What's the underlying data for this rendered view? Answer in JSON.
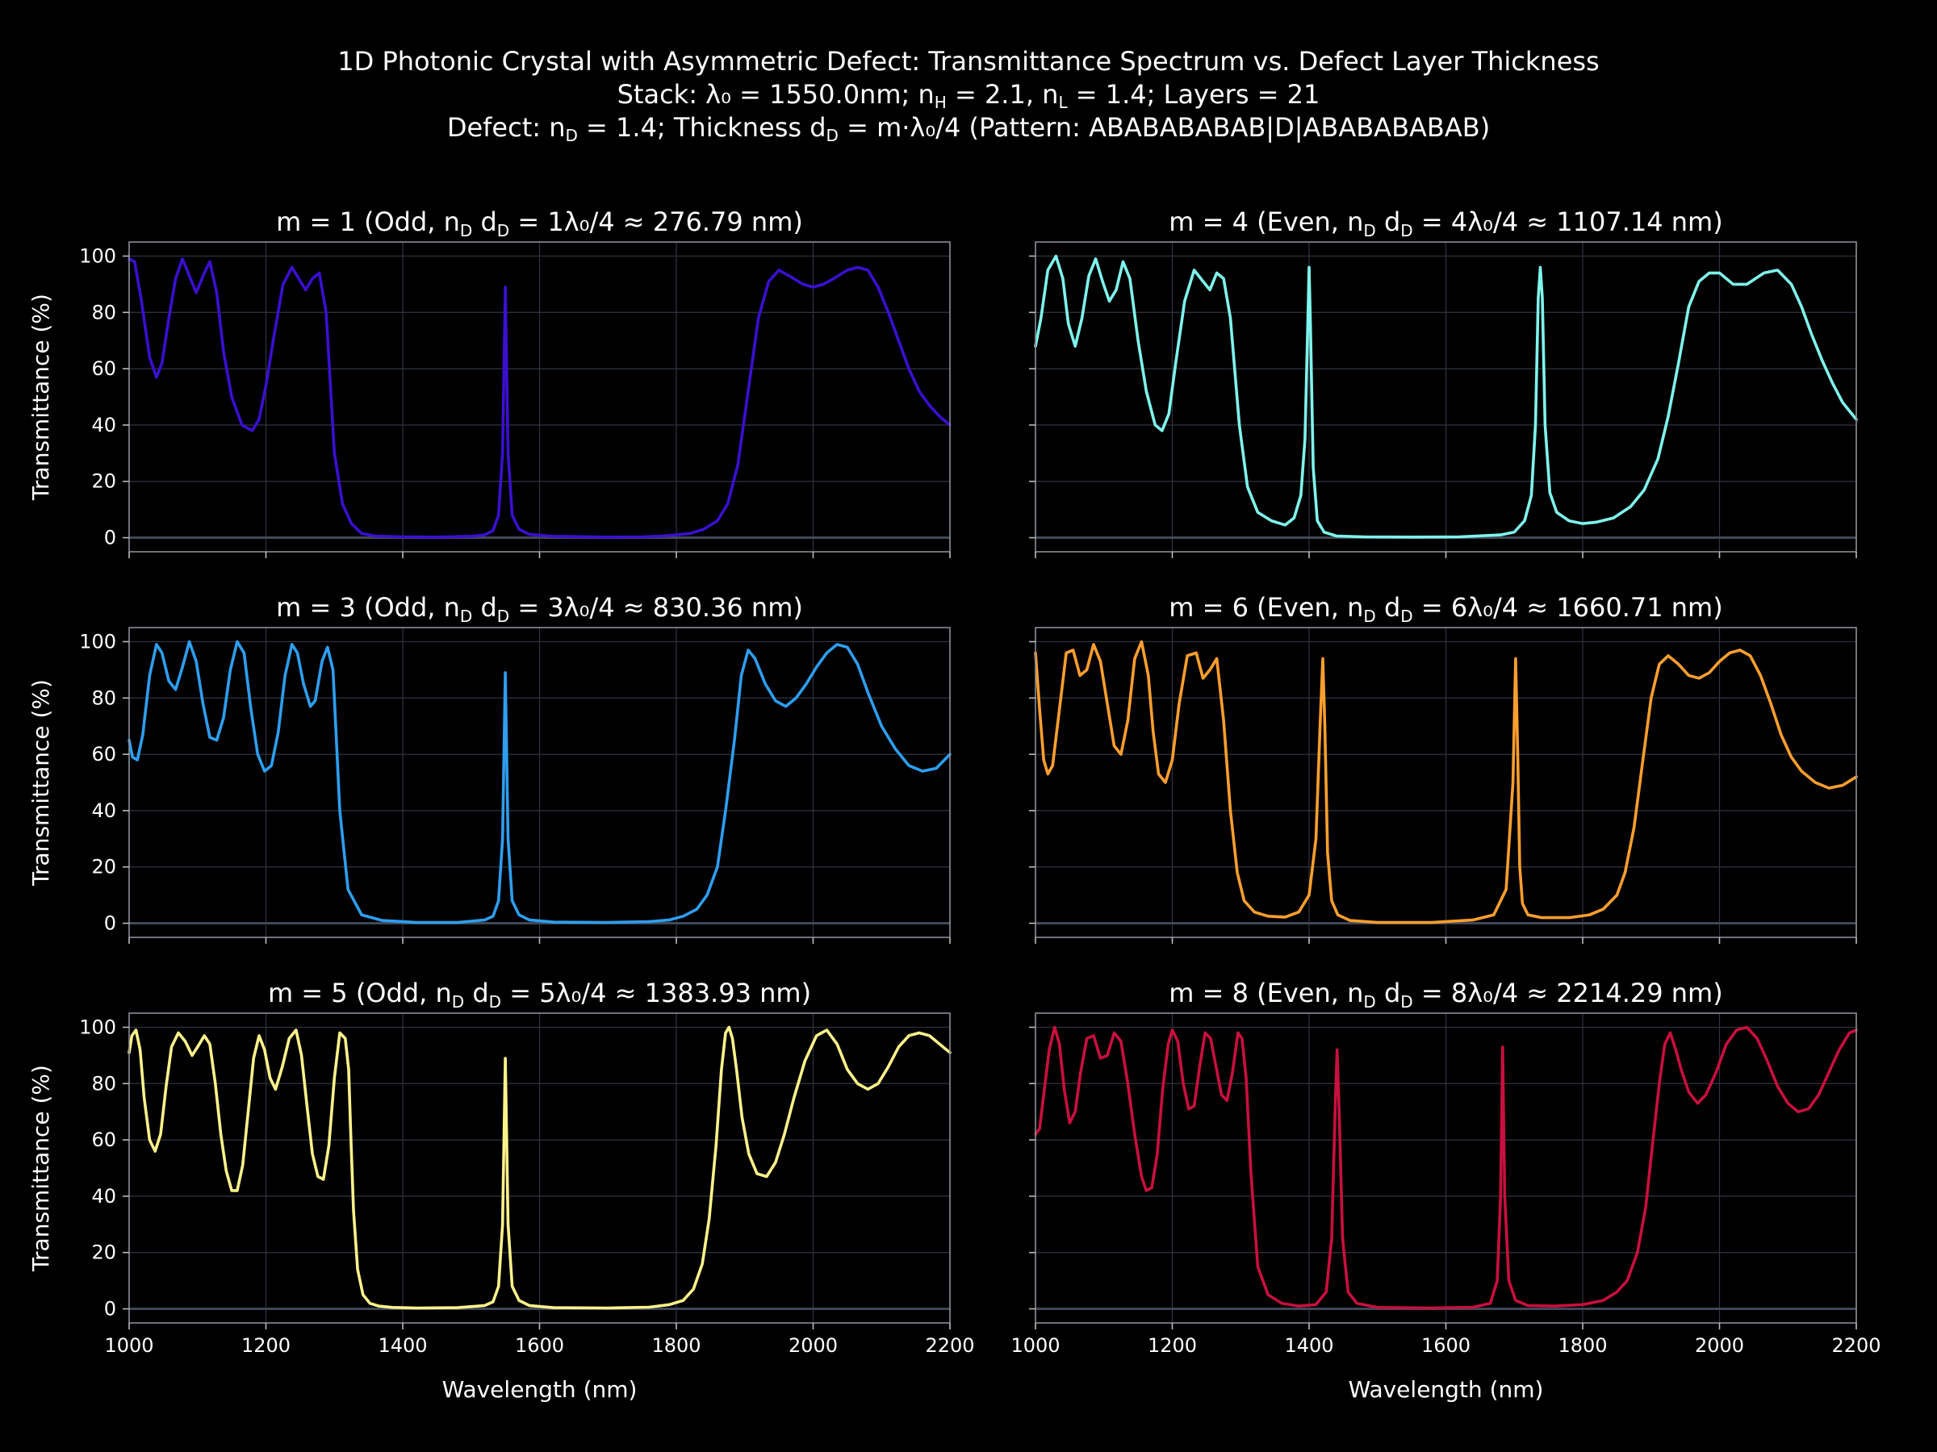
{
  "figure": {
    "title_lines": [
      "1D Photonic Crystal with Asymmetric Defect: Transmittance Spectrum vs. Defect Layer Thickness",
      "Stack: λ₀ = 1550.0nm; n_H = 2.1, n_L = 1.4; Layers = 21",
      "Defect: n_D = 1.4; Thickness d_D = m·λ₀/4 (Pattern: ABABABABAB|D|ABABABABAB)"
    ],
    "background": "#000000",
    "grid_color": "#2f3540",
    "baseline_color": "#3f4858"
  },
  "chart_data": [
    {
      "type": "line",
      "title": "m = 1 (Odd, n_D d_D = 1λ₀/4 ≈ 276.79 nm)",
      "xlabel": "",
      "ylabel": "Transmittance (%)",
      "xlim": [
        1000,
        2200
      ],
      "ylim": [
        -5,
        105
      ],
      "xticks": [
        1000,
        1200,
        1400,
        1600,
        1800,
        2000,
        2200
      ],
      "yticks": [
        0,
        20,
        40,
        60,
        80,
        100
      ],
      "show_xtick_labels": false,
      "show_ytick_labels": true,
      "grid": true,
      "color": "#3a10d0",
      "x": [
        1000,
        1008,
        1018,
        1030,
        1040,
        1048,
        1058,
        1068,
        1078,
        1088,
        1098,
        1110,
        1118,
        1128,
        1138,
        1150,
        1165,
        1180,
        1190,
        1200,
        1212,
        1225,
        1238,
        1248,
        1258,
        1268,
        1278,
        1288,
        1300,
        1312,
        1325,
        1340,
        1360,
        1400,
        1450,
        1500,
        1520,
        1532,
        1540,
        1546,
        1550,
        1554,
        1560,
        1570,
        1585,
        1620,
        1700,
        1750,
        1780,
        1800,
        1820,
        1840,
        1860,
        1875,
        1890,
        1905,
        1920,
        1935,
        1950,
        1965,
        1985,
        2000,
        2015,
        2030,
        2050,
        2065,
        2080,
        2095,
        2110,
        2125,
        2140,
        2155,
        2170,
        2185,
        2200
      ],
      "y": [
        99,
        98,
        84,
        64,
        57,
        62,
        78,
        92,
        99,
        93,
        87,
        94,
        98,
        87,
        66,
        50,
        40,
        38,
        42,
        54,
        72,
        90,
        96,
        92,
        88,
        92,
        94,
        80,
        30,
        12,
        5,
        1.5,
        0.6,
        0.3,
        0.2,
        0.5,
        1,
        2.5,
        8,
        30,
        89,
        30,
        8,
        3,
        1.2,
        0.5,
        0.2,
        0.3,
        0.6,
        1,
        1.5,
        3,
        6,
        12,
        26,
        52,
        78,
        91,
        95,
        93,
        90,
        89,
        90,
        92,
        95,
        96,
        95,
        89,
        80,
        70,
        60,
        52,
        47,
        43,
        40
      ]
    },
    {
      "type": "line",
      "title": "m = 4 (Even, n_D d_D = 4λ₀/4 ≈ 1107.14 nm)",
      "xlabel": "",
      "ylabel": "",
      "xlim": [
        1000,
        2200
      ],
      "ylim": [
        -5,
        105
      ],
      "xticks": [
        1000,
        1200,
        1400,
        1600,
        1800,
        2000,
        2200
      ],
      "yticks": [
        0,
        20,
        40,
        60,
        80,
        100
      ],
      "show_xtick_labels": false,
      "show_ytick_labels": false,
      "grid": true,
      "color": "#7ff5ec",
      "x": [
        1000,
        1008,
        1018,
        1030,
        1040,
        1048,
        1058,
        1068,
        1078,
        1088,
        1098,
        1108,
        1118,
        1128,
        1138,
        1150,
        1162,
        1175,
        1185,
        1195,
        1205,
        1218,
        1232,
        1245,
        1255,
        1265,
        1275,
        1285,
        1298,
        1310,
        1325,
        1345,
        1365,
        1378,
        1388,
        1394,
        1398,
        1400,
        1402,
        1406,
        1412,
        1422,
        1440,
        1480,
        1550,
        1620,
        1680,
        1700,
        1715,
        1725,
        1731,
        1735,
        1738,
        1741,
        1745,
        1752,
        1762,
        1780,
        1800,
        1820,
        1845,
        1870,
        1890,
        1910,
        1925,
        1940,
        1955,
        1970,
        1985,
        2000,
        2020,
        2040,
        2065,
        2085,
        2105,
        2120,
        2135,
        2150,
        2165,
        2180,
        2200
      ],
      "y": [
        68,
        78,
        95,
        100,
        92,
        76,
        68,
        78,
        93,
        99,
        91,
        84,
        88,
        98,
        92,
        70,
        52,
        40,
        38,
        44,
        62,
        84,
        95,
        91,
        88,
        94,
        92,
        78,
        40,
        18,
        9,
        6,
        4.5,
        7,
        15,
        35,
        75,
        96,
        75,
        25,
        6,
        2,
        0.6,
        0.3,
        0.2,
        0.3,
        1,
        2,
        6,
        15,
        40,
        85,
        96,
        85,
        40,
        16,
        9,
        6,
        5,
        5.5,
        7,
        11,
        17,
        28,
        43,
        62,
        82,
        91,
        94,
        94,
        90,
        90,
        94,
        95,
        90,
        82,
        72,
        63,
        55,
        48,
        42
      ]
    },
    {
      "type": "line",
      "title": "m = 3 (Odd, n_D d_D = 3λ₀/4 ≈ 830.36 nm)",
      "xlabel": "",
      "ylabel": "Transmittance (%)",
      "xlim": [
        1000,
        2200
      ],
      "ylim": [
        -5,
        105
      ],
      "xticks": [
        1000,
        1200,
        1400,
        1600,
        1800,
        2000,
        2200
      ],
      "yticks": [
        0,
        20,
        40,
        60,
        80,
        100
      ],
      "show_xtick_labels": false,
      "show_ytick_labels": true,
      "grid": true,
      "color": "#2e9ef0",
      "x": [
        1000,
        1005,
        1012,
        1020,
        1030,
        1040,
        1048,
        1058,
        1068,
        1078,
        1088,
        1098,
        1108,
        1118,
        1128,
        1138,
        1148,
        1158,
        1168,
        1178,
        1188,
        1198,
        1208,
        1218,
        1228,
        1238,
        1246,
        1255,
        1265,
        1272,
        1282,
        1290,
        1298,
        1308,
        1320,
        1340,
        1370,
        1420,
        1480,
        1520,
        1532,
        1540,
        1546,
        1550,
        1554,
        1560,
        1570,
        1585,
        1620,
        1700,
        1760,
        1790,
        1810,
        1830,
        1845,
        1860,
        1872,
        1885,
        1895,
        1905,
        1915,
        1930,
        1945,
        1960,
        1975,
        1990,
        2005,
        2020,
        2035,
        2050,
        2065,
        2080,
        2100,
        2120,
        2140,
        2160,
        2180,
        2200
      ],
      "y": [
        65,
        59,
        58,
        67,
        88,
        99,
        96,
        86,
        83,
        91,
        100,
        93,
        78,
        66,
        65,
        73,
        90,
        100,
        96,
        76,
        60,
        54,
        56,
        68,
        88,
        99,
        96,
        85,
        77,
        79,
        93,
        98,
        90,
        40,
        12,
        3,
        1,
        0.3,
        0.3,
        1.2,
        2.5,
        8,
        30,
        89,
        30,
        8,
        3,
        1.2,
        0.4,
        0.3,
        0.6,
        1.2,
        2.5,
        5,
        10,
        20,
        40,
        65,
        88,
        97,
        94,
        85,
        79,
        77,
        80,
        85,
        91,
        96,
        99,
        98,
        92,
        82,
        70,
        62,
        56,
        54,
        55,
        60
      ]
    },
    {
      "type": "line",
      "title": "m = 6 (Even, n_D d_D = 6λ₀/4 ≈ 1660.71 nm)",
      "xlabel": "",
      "ylabel": "",
      "xlim": [
        1000,
        2200
      ],
      "ylim": [
        -5,
        105
      ],
      "xticks": [
        1000,
        1200,
        1400,
        1600,
        1800,
        2000,
        2200
      ],
      "yticks": [
        0,
        20,
        40,
        60,
        80,
        100
      ],
      "show_xtick_labels": false,
      "show_ytick_labels": false,
      "grid": true,
      "color": "#ff9f2e",
      "x": [
        1000,
        1006,
        1012,
        1018,
        1025,
        1035,
        1045,
        1055,
        1065,
        1075,
        1085,
        1095,
        1105,
        1115,
        1125,
        1135,
        1145,
        1155,
        1165,
        1172,
        1180,
        1190,
        1200,
        1210,
        1222,
        1235,
        1245,
        1255,
        1265,
        1275,
        1285,
        1295,
        1305,
        1320,
        1340,
        1365,
        1385,
        1400,
        1410,
        1416,
        1420,
        1423,
        1427,
        1433,
        1442,
        1460,
        1500,
        1580,
        1640,
        1670,
        1688,
        1698,
        1702,
        1705,
        1708,
        1712,
        1720,
        1740,
        1780,
        1810,
        1830,
        1850,
        1862,
        1875,
        1888,
        1900,
        1912,
        1925,
        1940,
        1955,
        1970,
        1985,
        2000,
        2015,
        2030,
        2045,
        2060,
        2075,
        2090,
        2105,
        2120,
        2140,
        2160,
        2180,
        2200
      ],
      "y": [
        96,
        76,
        58,
        53,
        56,
        76,
        96,
        97,
        88,
        90,
        99,
        93,
        78,
        63,
        60,
        72,
        94,
        100,
        88,
        68,
        53,
        50,
        58,
        78,
        95,
        96,
        87,
        90,
        94,
        72,
        40,
        18,
        8,
        4,
        2.5,
        2.2,
        4,
        10,
        30,
        70,
        94,
        70,
        25,
        8,
        3,
        1,
        0.3,
        0.3,
        1.2,
        3,
        12,
        50,
        94,
        60,
        20,
        7,
        3,
        2,
        2,
        3,
        5,
        10,
        18,
        34,
        58,
        80,
        92,
        95,
        92,
        88,
        87,
        89,
        93,
        96,
        97,
        95,
        88,
        78,
        67,
        59,
        54,
        50,
        48,
        49,
        52
      ]
    },
    {
      "type": "line",
      "title": "m = 5 (Odd, n_D d_D = 5λ₀/4 ≈ 1383.93 nm)",
      "xlabel": "Wavelength (nm)",
      "ylabel": "Transmittance (%)",
      "xlim": [
        1000,
        2200
      ],
      "ylim": [
        -5,
        105
      ],
      "xticks": [
        1000,
        1200,
        1400,
        1600,
        1800,
        2000,
        2200
      ],
      "yticks": [
        0,
        20,
        40,
        60,
        80,
        100
      ],
      "show_xtick_labels": true,
      "show_ytick_labels": true,
      "grid": true,
      "color": "#fff28a",
      "x": [
        1000,
        1004,
        1010,
        1016,
        1022,
        1030,
        1038,
        1046,
        1054,
        1062,
        1072,
        1082,
        1092,
        1100,
        1110,
        1118,
        1126,
        1134,
        1142,
        1150,
        1158,
        1166,
        1174,
        1182,
        1190,
        1198,
        1206,
        1214,
        1224,
        1234,
        1244,
        1252,
        1260,
        1268,
        1276,
        1284,
        1292,
        1300,
        1308,
        1316,
        1321,
        1324,
        1328,
        1334,
        1342,
        1352,
        1365,
        1385,
        1420,
        1480,
        1520,
        1532,
        1540,
        1546,
        1550,
        1554,
        1560,
        1570,
        1585,
        1620,
        1700,
        1760,
        1790,
        1810,
        1825,
        1838,
        1848,
        1858,
        1866,
        1872,
        1877,
        1882,
        1888,
        1896,
        1906,
        1918,
        1932,
        1945,
        1958,
        1972,
        1988,
        2005,
        2020,
        2035,
        2050,
        2065,
        2080,
        2095,
        2110,
        2125,
        2140,
        2155,
        2170,
        2185,
        2200
      ],
      "y": [
        91,
        97,
        99,
        92,
        75,
        60,
        56,
        62,
        79,
        93,
        98,
        95,
        90,
        93,
        97,
        94,
        80,
        62,
        49,
        42,
        42,
        51,
        70,
        89,
        97,
        92,
        82,
        78,
        86,
        96,
        99,
        90,
        72,
        55,
        47,
        46,
        58,
        82,
        98,
        96,
        85,
        62,
        35,
        14,
        5,
        2,
        1,
        0.5,
        0.3,
        0.4,
        1.2,
        2.5,
        8,
        30,
        89,
        30,
        8,
        3,
        1.2,
        0.4,
        0.3,
        0.6,
        1.5,
        3,
        7,
        16,
        32,
        58,
        85,
        98,
        100,
        96,
        85,
        68,
        55,
        48,
        47,
        52,
        62,
        75,
        88,
        97,
        99,
        94,
        85,
        80,
        78,
        80,
        86,
        93,
        97,
        98,
        97,
        94,
        91
      ]
    },
    {
      "type": "line",
      "title": "m = 8 (Even, n_D d_D = 8λ₀/4 ≈ 2214.29 nm)",
      "xlabel": "Wavelength (nm)",
      "ylabel": "",
      "xlim": [
        1000,
        2200
      ],
      "ylim": [
        -5,
        105
      ],
      "xticks": [
        1000,
        1200,
        1400,
        1600,
        1800,
        2000,
        2200
      ],
      "yticks": [
        0,
        20,
        40,
        60,
        80,
        100
      ],
      "show_xtick_labels": true,
      "show_ytick_labels": false,
      "grid": true,
      "color": "#c8103e",
      "x": [
        1000,
        1006,
        1012,
        1020,
        1028,
        1035,
        1042,
        1050,
        1058,
        1066,
        1075,
        1085,
        1095,
        1105,
        1115,
        1125,
        1135,
        1145,
        1155,
        1162,
        1170,
        1178,
        1186,
        1194,
        1200,
        1208,
        1216,
        1224,
        1232,
        1240,
        1248,
        1256,
        1264,
        1272,
        1280,
        1288,
        1296,
        1302,
        1308,
        1315,
        1325,
        1340,
        1360,
        1385,
        1410,
        1425,
        1433,
        1438,
        1441,
        1444,
        1449,
        1457,
        1470,
        1500,
        1580,
        1640,
        1665,
        1675,
        1680,
        1683,
        1686,
        1692,
        1702,
        1720,
        1760,
        1800,
        1830,
        1850,
        1865,
        1880,
        1892,
        1902,
        1912,
        1920,
        1928,
        1936,
        1944,
        1955,
        1968,
        1980,
        1995,
        2010,
        2025,
        2040,
        2055,
        2070,
        2085,
        2100,
        2115,
        2130,
        2145,
        2160,
        2175,
        2190,
        2200
      ],
      "y": [
        62,
        64,
        76,
        92,
        100,
        94,
        78,
        66,
        70,
        84,
        96,
        97,
        89,
        90,
        98,
        95,
        80,
        62,
        47,
        42,
        43,
        55,
        78,
        94,
        99,
        95,
        80,
        71,
        72,
        86,
        98,
        96,
        86,
        76,
        74,
        84,
        98,
        96,
        82,
        48,
        15,
        5,
        2,
        1,
        1.5,
        6,
        25,
        70,
        92,
        70,
        25,
        6,
        2,
        0.5,
        0.3,
        0.6,
        2,
        10,
        40,
        93,
        40,
        10,
        3,
        1.2,
        1,
        1.5,
        3,
        6,
        10,
        20,
        36,
        58,
        80,
        94,
        98,
        92,
        85,
        77,
        73,
        76,
        84,
        94,
        99,
        100,
        96,
        88,
        79,
        73,
        70,
        71,
        76,
        84,
        92,
        98,
        99
      ]
    }
  ]
}
